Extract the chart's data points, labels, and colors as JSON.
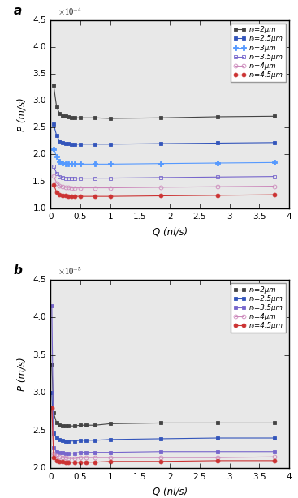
{
  "panel_a": {
    "title": "a",
    "ylabel": "P (m/s)",
    "xlabel": "Q (nl/s)",
    "scale_text": "x 10⁻⁴",
    "ylim_raw": [
      1.0,
      4.5
    ],
    "xlim": [
      0,
      4
    ],
    "ytick_vals": [
      1.0,
      1.5,
      2.0,
      2.5,
      3.0,
      3.5,
      4.0,
      4.5
    ],
    "xtick_vals": [
      0,
      0.5,
      1.0,
      1.5,
      2.0,
      2.5,
      3.0,
      3.5,
      4.0
    ],
    "series": [
      {
        "label": "r₀=2μm",
        "color": "#444444",
        "linestyle": "-",
        "marker": "s",
        "markerfacecolor": "#444444",
        "markeredgecolor": "#444444",
        "markersize": 3.5,
        "linewidth": 0.8,
        "markevery": [
          0,
          1,
          2,
          3,
          4,
          5,
          6,
          7,
          9,
          11,
          12,
          13,
          14
        ],
        "Q": [
          0.05,
          0.1,
          0.15,
          0.2,
          0.25,
          0.3,
          0.35,
          0.4,
          0.5,
          0.75,
          1.0,
          1.85,
          2.8,
          3.75
        ],
        "P": [
          3.28,
          2.88,
          2.76,
          2.72,
          2.71,
          2.7,
          2.69,
          2.68,
          2.68,
          2.68,
          2.67,
          2.68,
          2.7,
          2.71
        ]
      },
      {
        "label": "r₀=2.5μm",
        "color": "#3355bb",
        "linestyle": "-",
        "marker": "s",
        "markerfacecolor": "#3355bb",
        "markeredgecolor": "#3355bb",
        "markersize": 3.5,
        "linewidth": 0.8,
        "Q": [
          0.05,
          0.1,
          0.15,
          0.2,
          0.25,
          0.3,
          0.35,
          0.4,
          0.5,
          0.75,
          1.0,
          1.85,
          2.8,
          3.75
        ],
        "P": [
          2.56,
          2.35,
          2.25,
          2.22,
          2.2,
          2.2,
          2.19,
          2.19,
          2.19,
          2.19,
          2.19,
          2.2,
          2.21,
          2.22
        ]
      },
      {
        "label": "r₀=3μm",
        "color": "#5599ff",
        "linestyle": "-",
        "marker": "P",
        "markerfacecolor": "#5599ff",
        "markeredgecolor": "#5599ff",
        "markersize": 4,
        "linewidth": 0.8,
        "Q": [
          0.05,
          0.1,
          0.15,
          0.2,
          0.25,
          0.3,
          0.35,
          0.4,
          0.5,
          0.75,
          1.0,
          1.85,
          2.8,
          3.75
        ],
        "P": [
          2.1,
          1.96,
          1.87,
          1.84,
          1.83,
          1.82,
          1.82,
          1.82,
          1.82,
          1.82,
          1.82,
          1.83,
          1.84,
          1.85
        ]
      },
      {
        "label": "r₀=3.5μm",
        "color": "#7766cc",
        "linestyle": "-",
        "marker": "s",
        "markerfacecolor": "none",
        "markeredgecolor": "#7766cc",
        "markersize": 3.5,
        "linewidth": 0.8,
        "Q": [
          0.05,
          0.1,
          0.15,
          0.2,
          0.25,
          0.3,
          0.35,
          0.4,
          0.5,
          0.75,
          1.0,
          1.85,
          2.8,
          3.75
        ],
        "P": [
          1.78,
          1.65,
          1.59,
          1.57,
          1.56,
          1.56,
          1.56,
          1.56,
          1.56,
          1.56,
          1.56,
          1.57,
          1.58,
          1.59
        ]
      },
      {
        "label": "r₀=4μm",
        "color": "#cc88bb",
        "linestyle": "-",
        "marker": "o",
        "markerfacecolor": "none",
        "markeredgecolor": "#cc88bb",
        "markersize": 3.5,
        "linewidth": 0.8,
        "Q": [
          0.05,
          0.1,
          0.15,
          0.2,
          0.25,
          0.3,
          0.35,
          0.4,
          0.5,
          0.75,
          1.0,
          1.85,
          2.8,
          3.75
        ],
        "P": [
          1.6,
          1.47,
          1.42,
          1.4,
          1.39,
          1.39,
          1.38,
          1.38,
          1.38,
          1.38,
          1.38,
          1.39,
          1.4,
          1.41
        ]
      },
      {
        "label": "r₀=4.5μm",
        "color": "#cc3333",
        "linestyle": "-",
        "marker": "o",
        "markerfacecolor": "#cc3333",
        "markeredgecolor": "#cc3333",
        "markersize": 3.5,
        "linewidth": 0.8,
        "Q": [
          0.05,
          0.1,
          0.15,
          0.2,
          0.25,
          0.3,
          0.35,
          0.4,
          0.5,
          0.75,
          1.0,
          1.85,
          2.8,
          3.75
        ],
        "P": [
          1.44,
          1.3,
          1.25,
          1.23,
          1.23,
          1.22,
          1.22,
          1.22,
          1.22,
          1.22,
          1.22,
          1.23,
          1.24,
          1.25
        ]
      }
    ]
  },
  "panel_b": {
    "title": "b",
    "ylabel": "P (m/s)",
    "xlabel": "Q (nl/s)",
    "scale_text": "x 10⁻⁵",
    "ylim_raw": [
      2.0,
      4.5
    ],
    "xlim": [
      0,
      4
    ],
    "ytick_vals": [
      2.0,
      2.5,
      3.0,
      3.5,
      4.0,
      4.5
    ],
    "xtick_vals": [
      0,
      0.5,
      1.0,
      1.5,
      2.0,
      2.5,
      3.0,
      3.5,
      4.0
    ],
    "series": [
      {
        "label": "r₀=2μm",
        "color": "#444444",
        "linestyle": "-",
        "marker": "s",
        "markerfacecolor": "#444444",
        "markeredgecolor": "#444444",
        "markersize": 3.5,
        "linewidth": 0.8,
        "Q": [
          0.02,
          0.05,
          0.1,
          0.15,
          0.2,
          0.25,
          0.3,
          0.4,
          0.5,
          0.6,
          0.75,
          1.0,
          1.85,
          2.8,
          3.75
        ],
        "P": [
          3.38,
          2.73,
          2.6,
          2.57,
          2.56,
          2.56,
          2.56,
          2.56,
          2.57,
          2.57,
          2.57,
          2.59,
          2.6,
          2.6,
          2.6
        ]
      },
      {
        "label": "r₀=2.5μm",
        "color": "#3355bb",
        "linestyle": "-",
        "marker": "s",
        "markerfacecolor": "#3355bb",
        "markeredgecolor": "#3355bb",
        "markersize": 3.5,
        "linewidth": 0.8,
        "Q": [
          0.02,
          0.05,
          0.1,
          0.15,
          0.2,
          0.25,
          0.3,
          0.4,
          0.5,
          0.6,
          0.75,
          1.0,
          1.85,
          2.8,
          3.75
        ],
        "P": [
          3.0,
          2.46,
          2.4,
          2.38,
          2.37,
          2.36,
          2.36,
          2.36,
          2.37,
          2.37,
          2.37,
          2.38,
          2.39,
          2.4,
          2.4
        ]
      },
      {
        "label": "r₀=3.5μm",
        "color": "#7766cc",
        "linestyle": "-",
        "marker": "s",
        "markerfacecolor": "#7766cc",
        "markeredgecolor": "#7766cc",
        "markersize": 3.5,
        "linewidth": 0.8,
        "Q": [
          0.02,
          0.05,
          0.1,
          0.15,
          0.2,
          0.25,
          0.3,
          0.4,
          0.5,
          0.6,
          0.75,
          1.0,
          1.85,
          2.8,
          3.75
        ],
        "P": [
          4.15,
          2.27,
          2.22,
          2.21,
          2.21,
          2.2,
          2.2,
          2.2,
          2.21,
          2.21,
          2.21,
          2.21,
          2.22,
          2.22,
          2.22
        ]
      },
      {
        "label": "r₀=4μm",
        "color": "#cc88bb",
        "linestyle": "-",
        "marker": "o",
        "markerfacecolor": "none",
        "markeredgecolor": "#cc88bb",
        "markersize": 3.5,
        "linewidth": 0.8,
        "Q": [
          0.02,
          0.05,
          0.1,
          0.15,
          0.2,
          0.25,
          0.3,
          0.4,
          0.5,
          0.6,
          0.75,
          1.0,
          1.85,
          2.8,
          3.75
        ],
        "P": [
          2.8,
          2.2,
          2.16,
          2.15,
          2.14,
          2.14,
          2.13,
          2.13,
          2.14,
          2.14,
          2.14,
          2.14,
          2.14,
          2.14,
          2.15
        ]
      },
      {
        "label": "r₀=4.5μm",
        "color": "#cc3333",
        "linestyle": "-",
        "marker": "o",
        "markerfacecolor": "#cc3333",
        "markeredgecolor": "#cc3333",
        "markersize": 3.5,
        "linewidth": 0.8,
        "Q": [
          0.02,
          0.05,
          0.1,
          0.15,
          0.2,
          0.25,
          0.3,
          0.4,
          0.5,
          0.6,
          0.75,
          1.0,
          1.85,
          2.8,
          3.75
        ],
        "P": [
          2.8,
          2.14,
          2.1,
          2.09,
          2.09,
          2.08,
          2.08,
          2.08,
          2.08,
          2.08,
          2.08,
          2.09,
          2.09,
          2.1,
          2.1
        ]
      }
    ]
  },
  "bg_color": "#e8e8e8",
  "fig_bg": "#f0f0f0"
}
